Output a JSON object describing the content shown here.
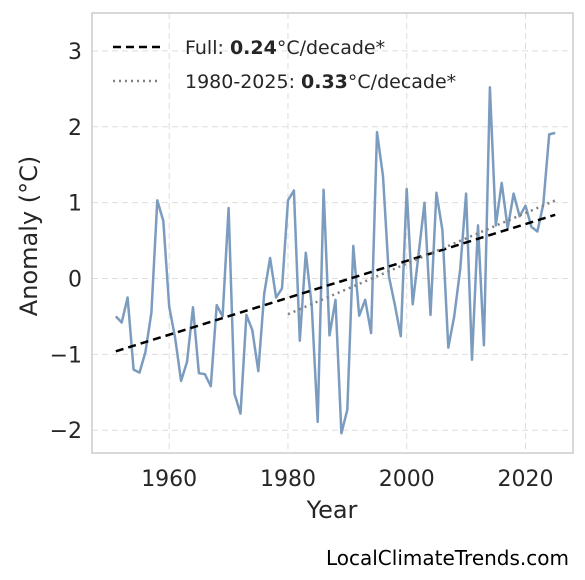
{
  "chart_data": {
    "type": "line",
    "xlabel": "Year",
    "ylabel": "Anomaly (°C)",
    "xlim": [
      1947,
      2028
    ],
    "ylim": [
      -2.3,
      3.5
    ],
    "x_ticks": [
      1960,
      1980,
      2000,
      2020
    ],
    "x_tick_labels": [
      "1960",
      "1980",
      "2000",
      "2020"
    ],
    "y_ticks": [
      -2,
      -1,
      0,
      1,
      2,
      3
    ],
    "y_tick_labels": [
      "−2",
      "−1",
      "0",
      "1",
      "2",
      "3"
    ],
    "grid": true,
    "legend_position": "top-left",
    "series": [
      {
        "style": "line",
        "color": "#7c9cbf",
        "x": [
          1951,
          1952,
          1953,
          1954,
          1955,
          1956,
          1957,
          1958,
          1959,
          1960,
          1961,
          1962,
          1963,
          1964,
          1965,
          1966,
          1967,
          1968,
          1969,
          1970,
          1971,
          1972,
          1973,
          1974,
          1975,
          1976,
          1977,
          1978,
          1979,
          1980,
          1981,
          1982,
          1983,
          1984,
          1985,
          1986,
          1987,
          1988,
          1989,
          1990,
          1991,
          1992,
          1993,
          1994,
          1995,
          1996,
          1997,
          1998,
          1999,
          2000,
          2001,
          2002,
          2003,
          2004,
          2005,
          2006,
          2007,
          2008,
          2009,
          2010,
          2011,
          2012,
          2013,
          2014,
          2015,
          2016,
          2017,
          2018,
          2019,
          2020,
          2021,
          2022,
          2023,
          2024,
          2025
        ],
        "values": [
          -0.5,
          -0.58,
          -0.25,
          -1.2,
          -1.24,
          -0.97,
          -0.45,
          1.03,
          0.76,
          -0.37,
          -0.78,
          -1.35,
          -1.1,
          -0.38,
          -1.25,
          -1.26,
          -1.42,
          -0.35,
          -0.5,
          0.93,
          -1.52,
          -1.78,
          -0.48,
          -0.68,
          -1.22,
          -0.2,
          0.27,
          -0.25,
          -0.13,
          1.03,
          1.16,
          -0.82,
          0.34,
          -0.35,
          -1.89,
          1.17,
          -0.75,
          -0.28,
          -2.04,
          -1.73,
          0.43,
          -0.49,
          -0.28,
          -0.72,
          1.93,
          1.35,
          0.03,
          -0.35,
          -0.76,
          1.18,
          -0.34,
          0.32,
          1.0,
          -0.48,
          1.13,
          0.64,
          -0.91,
          -0.5,
          0.12,
          1.12,
          -1.07,
          0.7,
          -0.88,
          2.52,
          0.7,
          1.26,
          0.66,
          1.12,
          0.82,
          0.96,
          0.68,
          0.62,
          0.98,
          1.9,
          1.92
        ]
      },
      {
        "name": "Full: 0.24°C/decade*",
        "style": "dashed",
        "color": "#000000",
        "x": [
          1951,
          2025
        ],
        "values": [
          -0.96,
          0.84
        ]
      },
      {
        "name": "1980-2025: 0.33°C/decade*",
        "style": "dotted",
        "color": "#808080",
        "x": [
          1980,
          2025
        ],
        "values": [
          -0.47,
          1.03
        ]
      }
    ]
  },
  "legend": {
    "full_prefix": "Full: ",
    "full_value": "0.24",
    "full_suffix": "°C/decade*",
    "recent_prefix": "1980-2025: ",
    "recent_value": "0.33",
    "recent_suffix": "°C/decade*"
  },
  "credit": "LocalClimateTrends.com"
}
